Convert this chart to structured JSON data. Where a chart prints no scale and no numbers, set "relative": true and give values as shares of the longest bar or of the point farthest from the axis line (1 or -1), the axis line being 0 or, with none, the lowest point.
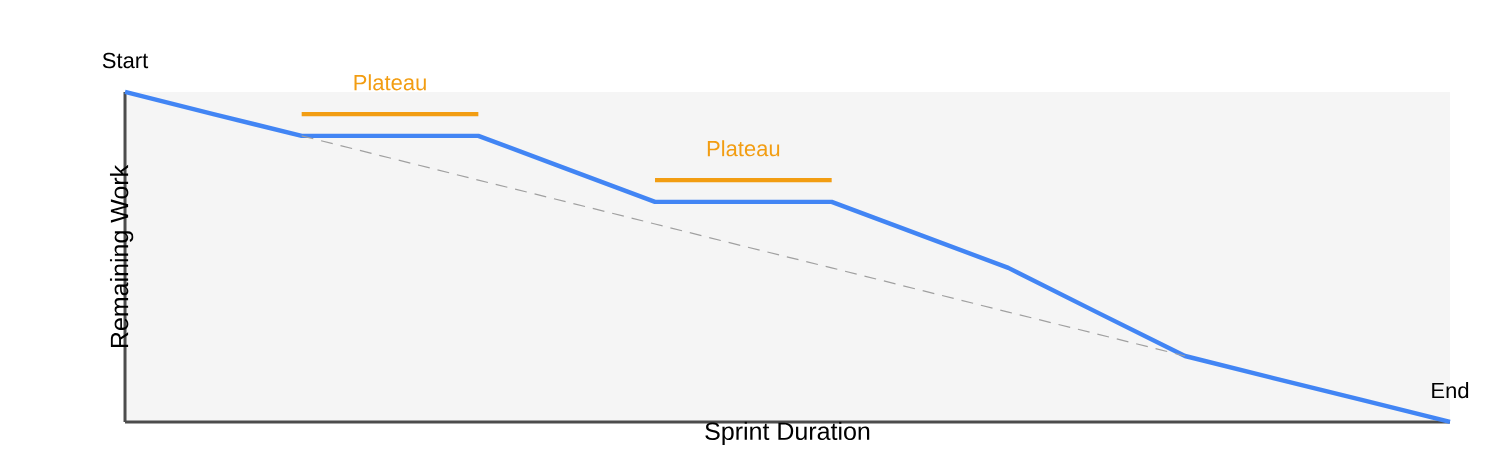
{
  "chart_data": {
    "type": "line",
    "relative": true,
    "xlabel": "Sprint Duration",
    "ylabel": "Remaining Work",
    "marker": "none",
    "categories": [
      null,
      null,
      null,
      null,
      null,
      null,
      null,
      null,
      null,
      null,
      null,
      null,
      null,
      null,
      null,
      null
    ],
    "series": [
      {
        "color": "#4285f4",
        "values": [
          1,
          0.933,
          0.867,
          0.867,
          0.867,
          0.767,
          0.667,
          0.667,
          0.667,
          0.567,
          0.467,
          0.333,
          0.2,
          0.133,
          0.067,
          0
        ]
      },
      {
        "color": "#a0a0a0",
        "line_style": "dashed",
        "values": [
          null,
          null,
          0.867,
          0.8,
          0.733,
          0.667,
          0.6,
          0.533,
          0.467,
          0.4,
          0.333,
          0.267,
          0.2,
          null,
          null,
          null
        ]
      },
      {
        "name": "Plateau",
        "color": "#f29d12",
        "values": [
          null,
          null,
          0.933,
          0.933,
          0.933,
          null,
          null,
          null,
          null,
          null,
          null,
          null,
          null,
          null,
          null,
          null
        ]
      },
      {
        "name": "Plateau",
        "color": "#f29d12",
        "values": [
          null,
          null,
          null,
          null,
          null,
          null,
          0.733,
          0.733,
          0.733,
          null,
          null,
          null,
          null,
          null,
          null,
          null
        ]
      }
    ],
    "annotations": [
      "Start",
      "End"
    ]
  }
}
